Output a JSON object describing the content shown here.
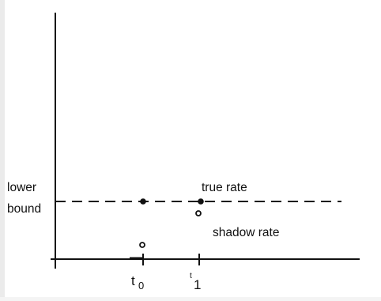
{
  "diagram": {
    "lower_bound_label_line1": "lower",
    "lower_bound_label_line2": "bound",
    "true_rate_label": "true rate",
    "shadow_rate_label": "shadow rate",
    "tick_t0_label": "t",
    "tick_t0_subscript": "0",
    "tick_t1_prefix": "t",
    "tick_t1_subscript": "1"
  },
  "colors": {
    "ink": "#111111",
    "background": "#ffffff",
    "margin": "#ebebeb"
  }
}
